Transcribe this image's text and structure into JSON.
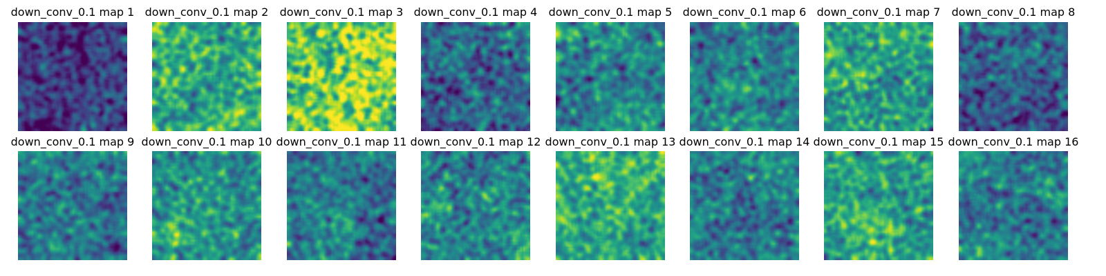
{
  "figure": {
    "colormap": "viridis",
    "axes": "off",
    "rows": 2,
    "columns": 8,
    "maps": [
      {
        "title": "down_conv_0.1 map 1",
        "mean_intensity": 0.18,
        "contrast": 0.1
      },
      {
        "title": "down_conv_0.1 map 2",
        "mean_intensity": 0.62,
        "contrast": 0.13
      },
      {
        "title": "down_conv_0.1 map 3",
        "mean_intensity": 0.8,
        "contrast": 0.16
      },
      {
        "title": "down_conv_0.1 map 4",
        "mean_intensity": 0.33,
        "contrast": 0.12
      },
      {
        "title": "down_conv_0.1 map 5",
        "mean_intensity": 0.46,
        "contrast": 0.12
      },
      {
        "title": "down_conv_0.1 map 6",
        "mean_intensity": 0.44,
        "contrast": 0.11
      },
      {
        "title": "down_conv_0.1 map 7",
        "mean_intensity": 0.57,
        "contrast": 0.12
      },
      {
        "title": "down_conv_0.1 map 8",
        "mean_intensity": 0.3,
        "contrast": 0.11
      },
      {
        "title": "down_conv_0.1 map 9",
        "mean_intensity": 0.4,
        "contrast": 0.11
      },
      {
        "title": "down_conv_0.1 map 10",
        "mean_intensity": 0.52,
        "contrast": 0.12
      },
      {
        "title": "down_conv_0.1 map 11",
        "mean_intensity": 0.4,
        "contrast": 0.11
      },
      {
        "title": "down_conv_0.1 map 12",
        "mean_intensity": 0.46,
        "contrast": 0.12
      },
      {
        "title": "down_conv_0.1 map 13",
        "mean_intensity": 0.62,
        "contrast": 0.12
      },
      {
        "title": "down_conv_0.1 map 14",
        "mean_intensity": 0.42,
        "contrast": 0.11
      },
      {
        "title": "down_conv_0.1 map 15",
        "mean_intensity": 0.58,
        "contrast": 0.12
      },
      {
        "title": "down_conv_0.1 map 16",
        "mean_intensity": 0.42,
        "contrast": 0.11
      }
    ]
  }
}
